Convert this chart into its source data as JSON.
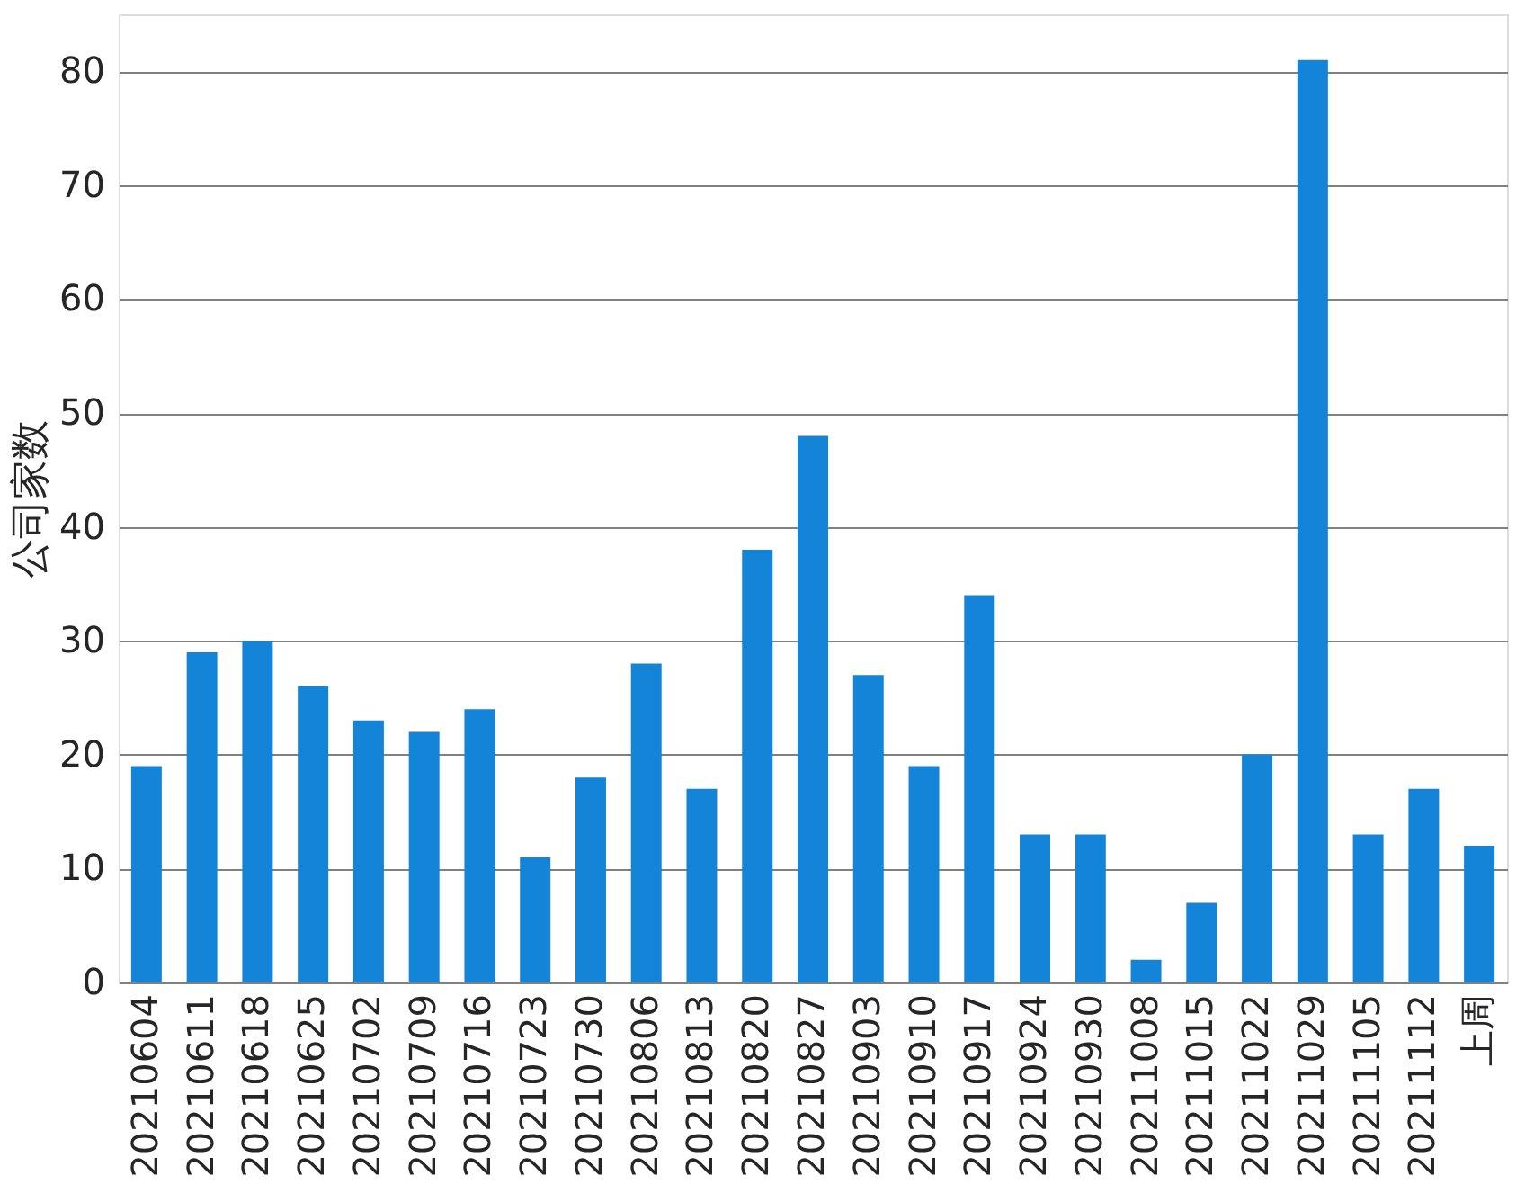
{
  "chart_data": {
    "type": "bar",
    "ylabel": "公司家数",
    "categories": [
      "20210604",
      "20210611",
      "20210618",
      "20210625",
      "20210702",
      "20210709",
      "20210716",
      "20210723",
      "20210730",
      "20210806",
      "20210813",
      "20210820",
      "20210827",
      "20210903",
      "20210910",
      "20210917",
      "20210924",
      "20210930",
      "20211008",
      "20211015",
      "20211022",
      "20211029",
      "20211105",
      "20211112",
      "上周"
    ],
    "values": [
      19,
      29,
      30,
      26,
      23,
      22,
      24,
      11,
      18,
      28,
      17,
      38,
      48,
      27,
      19,
      34,
      13,
      13,
      2,
      7,
      20,
      81,
      13,
      17,
      12
    ],
    "color": "#1484d8",
    "ylim": [
      0,
      85
    ],
    "yticks": [
      0,
      10,
      20,
      30,
      40,
      50,
      60,
      70,
      80
    ],
    "grid": "y"
  }
}
